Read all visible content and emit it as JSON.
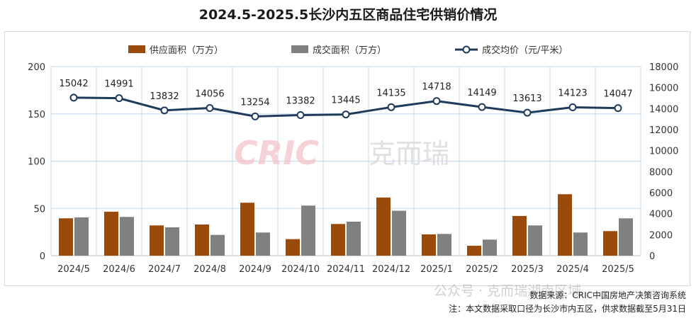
{
  "title": "2024.5-2025.5长沙内五区商品住宅供销价情况",
  "legend": {
    "supply": "供应面积（万方）",
    "transaction": "成交面积（万方）",
    "price": "成交均价（元/平米）"
  },
  "watermark": {
    "brand": "CRIC",
    "cn": "克而瑞",
    "wechat": "公众号 · 克而瑞湖南区域"
  },
  "footer": {
    "source": "数据来源：CRIC中国房地产决策咨询系统",
    "note": "注：本文数据采取口径为长沙市内五区，供求数据截至5月31日"
  },
  "colors": {
    "supply": "#9A4A0B",
    "transaction": "#808080",
    "price": "#1F3B5C",
    "grid": "#C5DAEE",
    "watermark": "#F3C3C9"
  },
  "chart_data": {
    "type": "bar",
    "categories": [
      "2024/5",
      "2024/6",
      "2024/7",
      "2024/8",
      "2024/9",
      "2024/10",
      "2024/11",
      "2024/12",
      "2025/1",
      "2025/2",
      "2025/3",
      "2025/4",
      "2025/5"
    ],
    "series": [
      {
        "name": "供应面积（万方）",
        "type": "bar",
        "axis": "left",
        "values": [
          39.5,
          46.5,
          32,
          33,
          56,
          17.5,
          33.5,
          61.5,
          22.5,
          10.5,
          42,
          65,
          26
        ]
      },
      {
        "name": "成交面积（万方）",
        "type": "bar",
        "axis": "left",
        "values": [
          40.5,
          41,
          30,
          22,
          24.5,
          53,
          36,
          47.5,
          23,
          17,
          32,
          24.5,
          39.5
        ]
      },
      {
        "name": "成交均价（元/平米）",
        "type": "line",
        "axis": "right",
        "values": [
          15042,
          14991,
          13832,
          14056,
          13254,
          13382,
          13445,
          14135,
          14718,
          14149,
          13613,
          14123,
          14047
        ],
        "labels": [
          "15042",
          "14991",
          "13832",
          "14056",
          "13254",
          "13382",
          "13445",
          "14135",
          "14718",
          "14149",
          "13613",
          "14123",
          "14047"
        ]
      }
    ],
    "y_left": {
      "lim": [
        0,
        200
      ],
      "ticks": [
        "0",
        "50",
        "100",
        "150",
        "200"
      ]
    },
    "y_right": {
      "lim": [
        0,
        18000
      ],
      "ticks": [
        "0",
        "2000",
        "4000",
        "6000",
        "8000",
        "10000",
        "12000",
        "14000",
        "16000",
        "18000"
      ]
    },
    "grid": true,
    "legend_position": "top-center"
  }
}
